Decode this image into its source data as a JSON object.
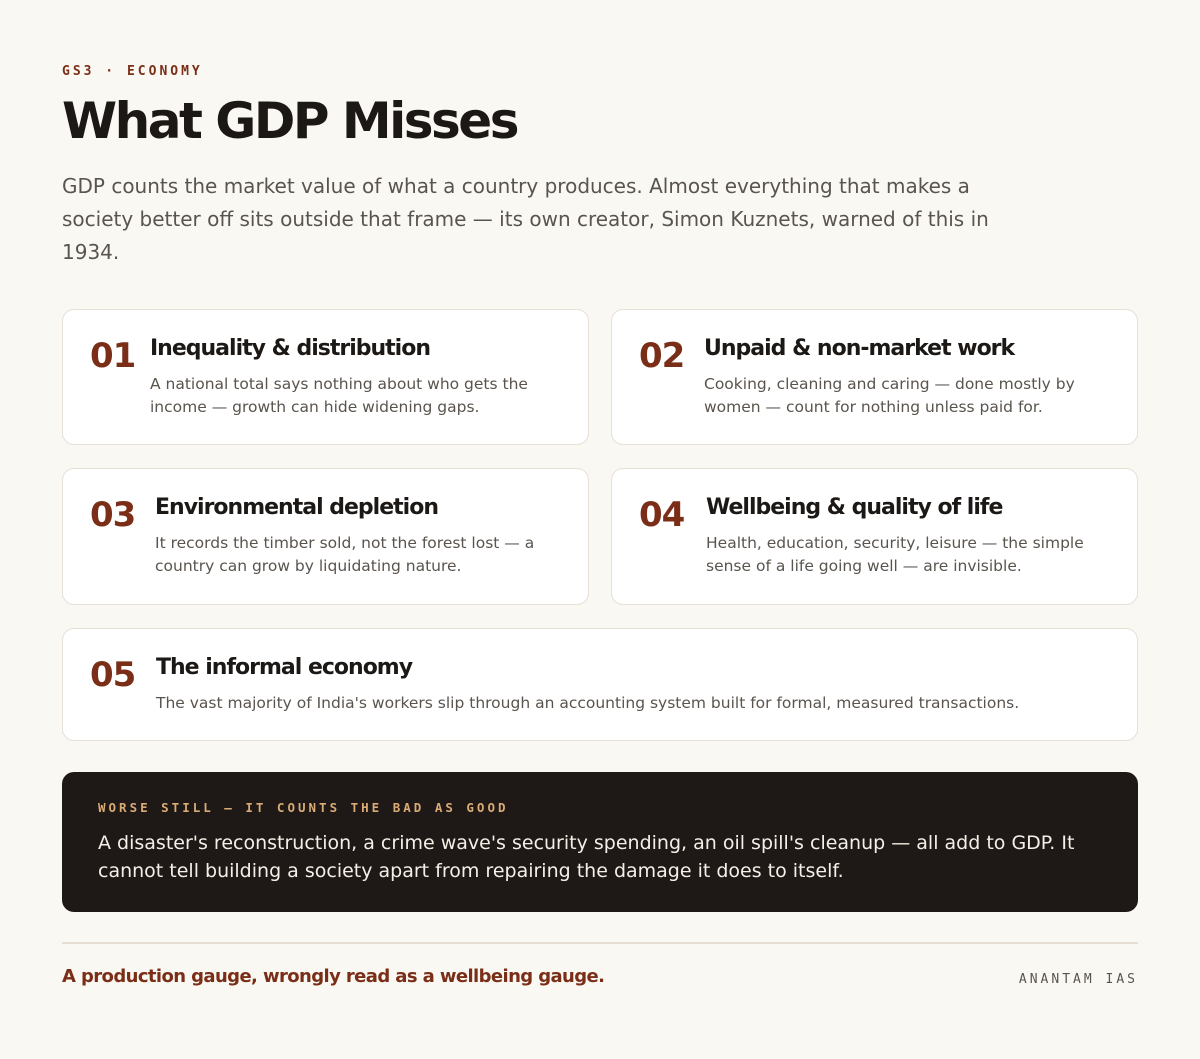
{
  "header": {
    "eyebrow": "GS3 · ECONOMY",
    "title": "What GDP Misses",
    "intro": "GDP counts the market value of what a country produces. Almost everything that makes a society better off sits outside that frame — its own creator, Simon Kuznets, warned of this in 1934."
  },
  "cards": [
    {
      "num": "01",
      "title": "Inequality & distribution",
      "body": "A national total says nothing about who gets the income — growth can hide widening gaps."
    },
    {
      "num": "02",
      "title": "Unpaid & non-market work",
      "body": "Cooking, cleaning and caring — done mostly by women — count for nothing unless paid for."
    },
    {
      "num": "03",
      "title": "Environmental depletion",
      "body": "It records the timber sold, not the forest lost — a country can grow by liquidating nature."
    },
    {
      "num": "04",
      "title": "Wellbeing & quality of life",
      "body": "Health, education, security, leisure — the simple sense of a life going well — are invisible."
    },
    {
      "num": "05",
      "title": "The informal economy",
      "body": "The vast majority of India's workers slip through an accounting system built for formal, measured transactions."
    }
  ],
  "callout": {
    "label": "WORSE STILL — IT COUNTS THE BAD AS GOOD",
    "text": "A disaster's reconstruction, a crime wave's security spending, an oil spill's cleanup — all add to GDP. It cannot tell building a society apart from repairing the damage it does to itself."
  },
  "footer": {
    "tagline": "A production gauge, wrongly read as a wellbeing gauge.",
    "brand": "ANANTAM IAS"
  }
}
